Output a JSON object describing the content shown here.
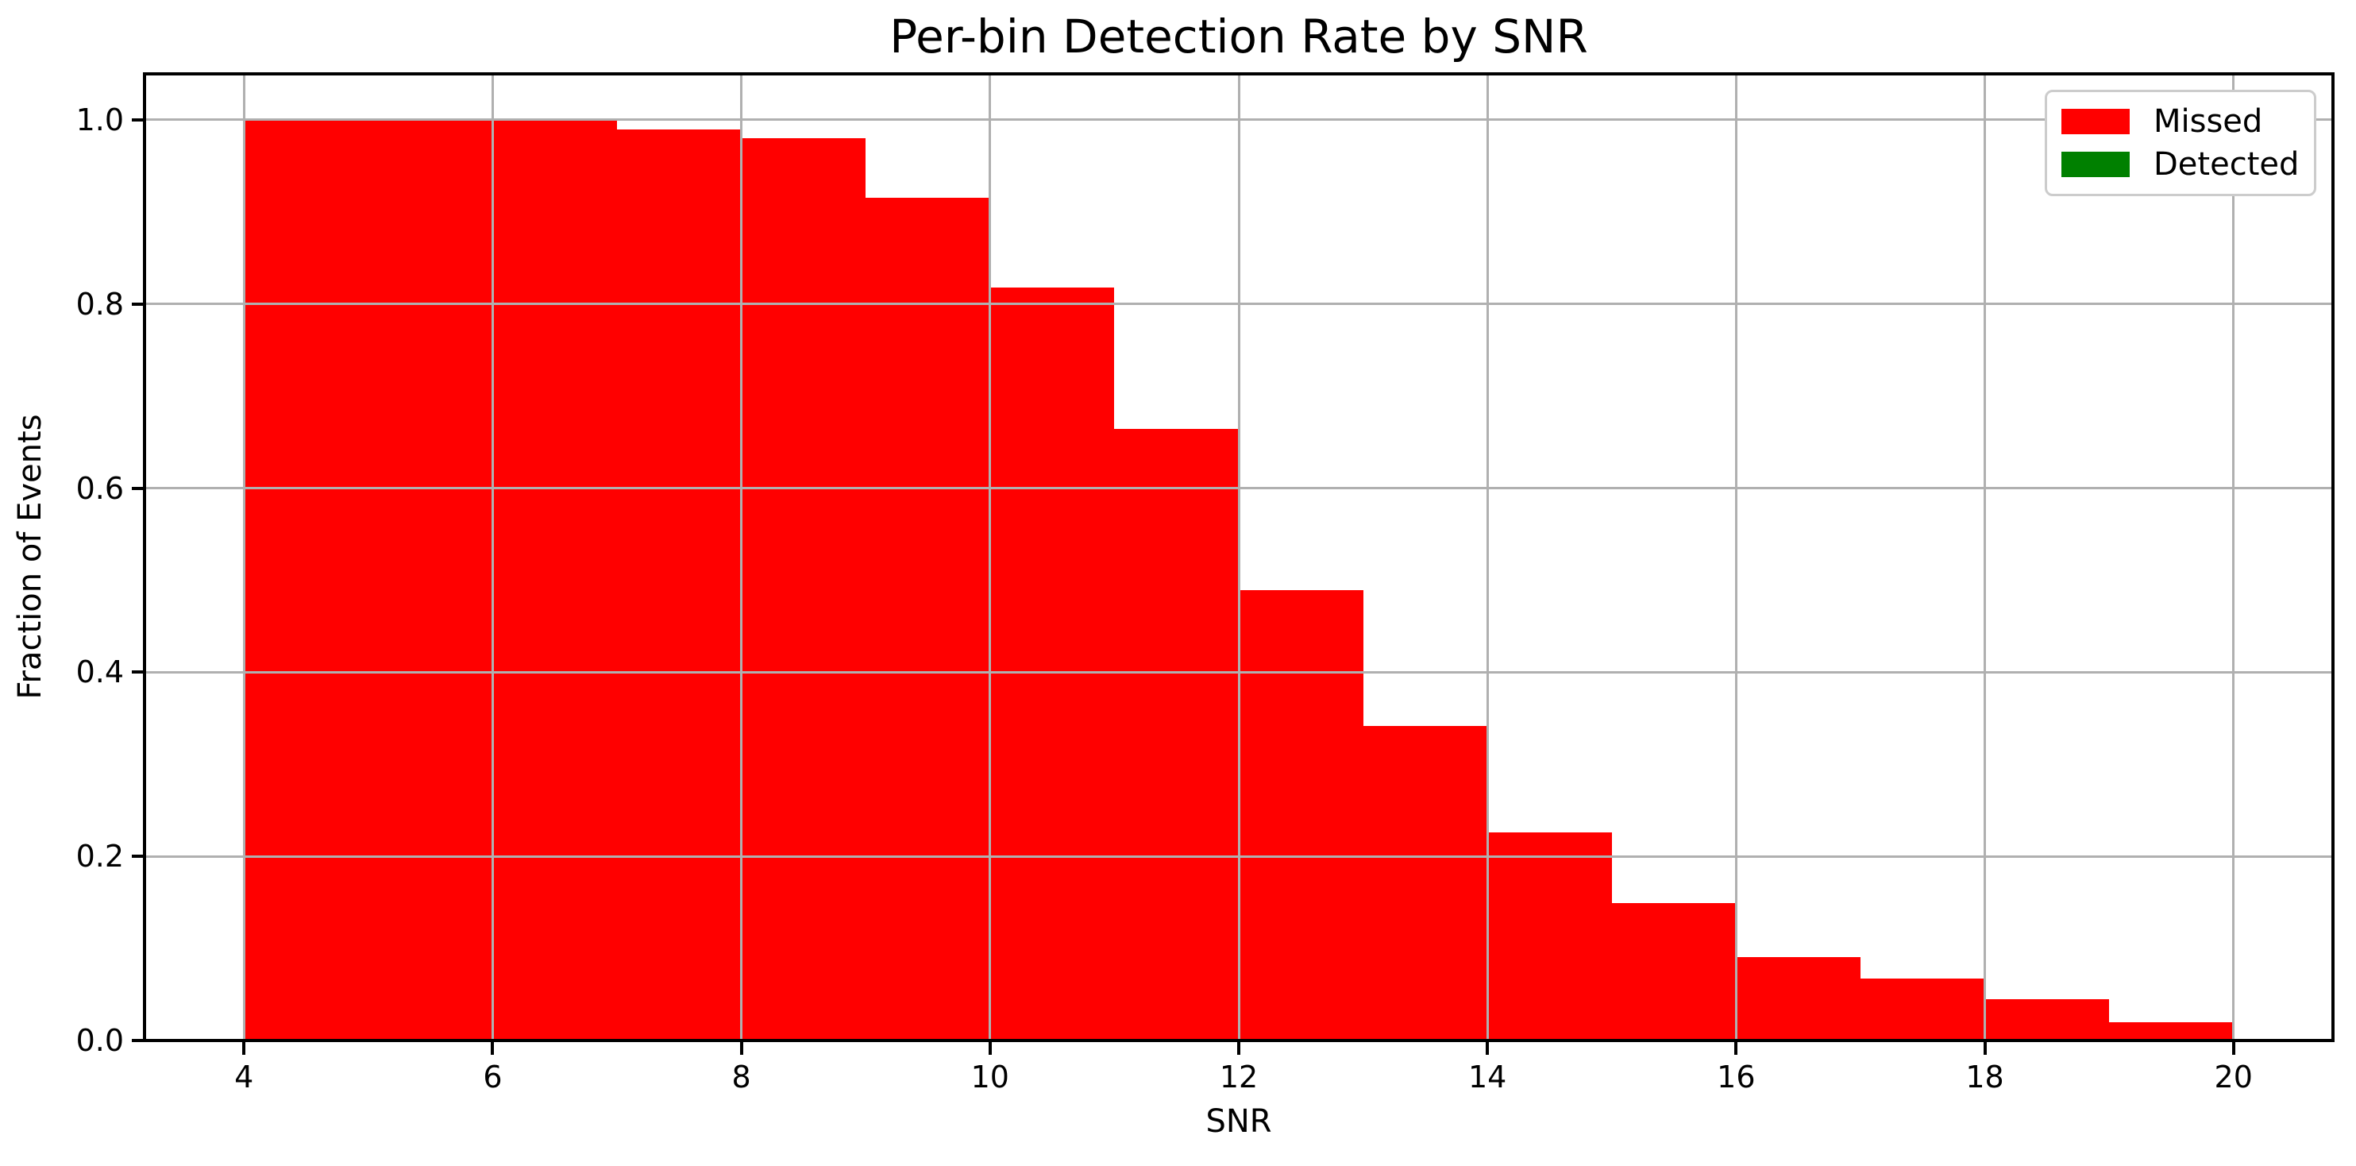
{
  "chart_data": {
    "type": "bar",
    "title": "Per-bin Detection Rate by SNR",
    "xlabel": "SNR",
    "ylabel": "Fraction of Events",
    "xlim": [
      3.2,
      20.8
    ],
    "ylim": [
      0,
      1.05
    ],
    "grid": true,
    "legend_position": "upper right",
    "xticks": [
      4,
      6,
      8,
      10,
      12,
      14,
      16,
      18,
      20
    ],
    "xtick_labels": [
      "4",
      "6",
      "8",
      "10",
      "12",
      "14",
      "16",
      "18",
      "20"
    ],
    "yticks": [
      0.0,
      0.2,
      0.4,
      0.6,
      0.8,
      1.0
    ],
    "ytick_labels": [
      "0.0",
      "0.2",
      "0.4",
      "0.6",
      "0.8",
      "1.0"
    ],
    "bin_edges": [
      4,
      5,
      6,
      7,
      8,
      9,
      10,
      11,
      12,
      13,
      14,
      15,
      16,
      17,
      18,
      19,
      20
    ],
    "series": [
      {
        "name": "Missed",
        "color": "#ff0000",
        "values": [
          1.0,
          1.0,
          1.0,
          0.99,
          0.98,
          0.915,
          0.818,
          0.664,
          0.489,
          0.342,
          0.226,
          0.149,
          0.091,
          0.067,
          0.045,
          0.02
        ]
      },
      {
        "name": "Detected",
        "color": "#008000",
        "values": []
      }
    ],
    "legend": {
      "entries": [
        {
          "label": "Missed",
          "color": "#ff0000"
        },
        {
          "label": "Detected",
          "color": "#008000"
        }
      ]
    }
  },
  "colors": {
    "background": "#ffffff",
    "bar_missed": "#ff0000",
    "legend_detected": "#008000",
    "gridline": "#b0b0b0",
    "spine": "#000000",
    "legend_border": "#cccccc",
    "text": "#000000"
  }
}
